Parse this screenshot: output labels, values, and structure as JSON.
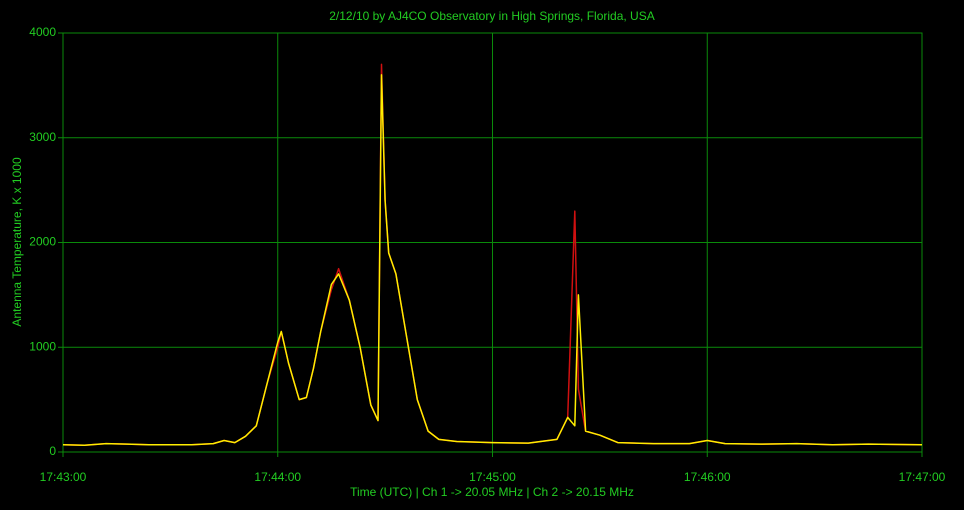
{
  "chart_data": {
    "type": "line",
    "title": "2/12/10  by  AJ4CO Observatory  in  High Springs, Florida, USA",
    "y_label": "Antenna Temperature, K x 1000",
    "x_label": "Time (UTC)  |  Ch 1 -> 20.05 MHz  |  Ch 2 -> 20.15 MHz",
    "x": [
      "17:43:00",
      "17:43:06",
      "17:43:12",
      "17:43:18",
      "17:43:24",
      "17:43:30",
      "17:43:36",
      "17:43:42",
      "17:43:45",
      "17:43:48",
      "17:43:51",
      "17:43:54",
      "17:43:57",
      "17:44:00",
      "17:44:01",
      "17:44:03",
      "17:44:06",
      "17:44:08",
      "17:44:10",
      "17:44:12",
      "17:44:15",
      "17:44:17",
      "17:44:20",
      "17:44:23",
      "17:44:26",
      "17:44:28",
      "17:44:29",
      "17:44:30",
      "17:44:31",
      "17:44:33",
      "17:44:36",
      "17:44:39",
      "17:44:42",
      "17:44:45",
      "17:44:50",
      "17:45:00",
      "17:45:10",
      "17:45:18",
      "17:45:21",
      "17:45:23",
      "17:45:24",
      "17:45:26",
      "17:45:30",
      "17:45:35",
      "17:45:45",
      "17:45:55",
      "17:46:00",
      "17:46:05",
      "17:46:15",
      "17:46:25",
      "17:46:35",
      "17:46:45",
      "17:47:00"
    ],
    "series": [
      {
        "name": "Ch 1",
        "color": "#d01010",
        "values": [
          70,
          65,
          80,
          75,
          70,
          70,
          70,
          80,
          110,
          90,
          150,
          250,
          650,
          1000,
          1150,
          850,
          500,
          520,
          800,
          1150,
          1550,
          1750,
          1450,
          1000,
          450,
          300,
          3700,
          2400,
          1900,
          1700,
          1100,
          500,
          200,
          120,
          100,
          90,
          85,
          120,
          330,
          2300,
          600,
          200,
          160,
          90,
          80,
          80,
          110,
          80,
          75,
          80,
          70,
          75,
          70
        ]
      },
      {
        "name": "Ch 2",
        "color": "#ffee00",
        "values": [
          70,
          65,
          80,
          75,
          70,
          70,
          70,
          80,
          110,
          90,
          150,
          250,
          650,
          1050,
          1150,
          850,
          500,
          520,
          800,
          1150,
          1600,
          1700,
          1450,
          1000,
          450,
          300,
          3600,
          2400,
          1900,
          1700,
          1100,
          500,
          200,
          120,
          100,
          90,
          85,
          120,
          330,
          250,
          1500,
          200,
          160,
          90,
          80,
          80,
          110,
          80,
          75,
          80,
          70,
          75,
          70
        ]
      }
    ],
    "xlim": [
      "17:43:00",
      "17:47:00"
    ],
    "xticks": [
      "17:43:00",
      "17:44:00",
      "17:45:00",
      "17:46:00",
      "17:47:00"
    ],
    "ylim": [
      0,
      4000
    ],
    "yticks": [
      0,
      1000,
      2000,
      3000,
      4000
    ],
    "grid": true
  }
}
